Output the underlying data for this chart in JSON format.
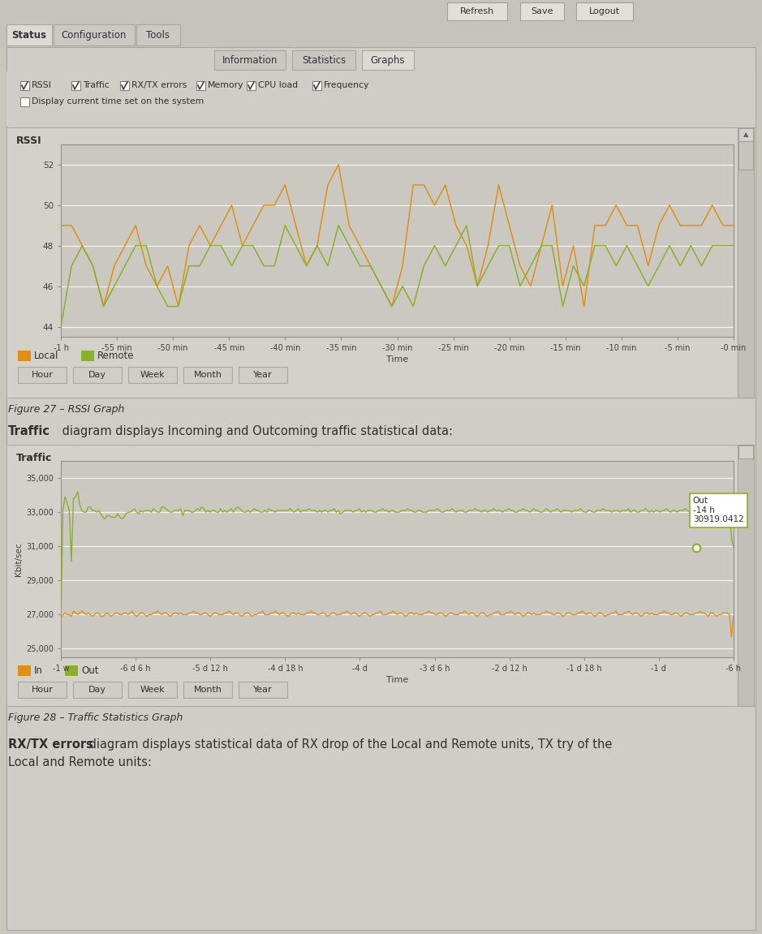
{
  "rssi_title": "RSSI",
  "rssi_xlabel": "Time",
  "rssi_yticks": [
    44,
    46,
    48,
    50,
    52
  ],
  "rssi_xticks": [
    "-1 h",
    "-55 min",
    "-50 min",
    "-45 min",
    "-40 min",
    "-35 min",
    "-30 min",
    "-25 min",
    "-20 min",
    "-15 min",
    "-10 min",
    "-5 min",
    "-0 min"
  ],
  "rssi_ylim": [
    43.5,
    53
  ],
  "rssi_local_color": "#e09018",
  "rssi_remote_color": "#8ab030",
  "rssi_local_data": [
    49,
    49,
    48,
    47,
    45,
    47,
    48,
    49,
    47,
    46,
    47,
    45,
    48,
    49,
    48,
    49,
    50,
    48,
    49,
    50,
    50,
    51,
    49,
    47,
    48,
    51,
    52,
    49,
    48,
    47,
    46,
    45,
    47,
    51,
    51,
    50,
    51,
    49,
    48,
    46,
    48,
    51,
    49,
    47,
    46,
    48,
    50,
    46,
    48,
    45,
    49,
    49,
    50,
    49,
    49,
    47,
    49,
    50,
    49,
    49,
    49,
    50,
    49,
    49
  ],
  "rssi_remote_data": [
    44,
    47,
    48,
    47,
    45,
    46,
    47,
    48,
    48,
    46,
    45,
    45,
    47,
    47,
    48,
    48,
    47,
    48,
    48,
    47,
    47,
    49,
    48,
    47,
    48,
    47,
    49,
    48,
    47,
    47,
    46,
    45,
    46,
    45,
    47,
    48,
    47,
    48,
    49,
    46,
    47,
    48,
    48,
    46,
    47,
    48,
    48,
    45,
    47,
    46,
    48,
    48,
    47,
    48,
    47,
    46,
    47,
    48,
    47,
    48,
    47,
    48,
    48,
    48
  ],
  "rssi_time_buttons": [
    "Hour",
    "Day",
    "Week",
    "Month",
    "Year"
  ],
  "figure27_label": "Figure 27 – RSSI Graph",
  "traffic_title": "Traffic",
  "traffic_ylabel": "Kbit/sec",
  "traffic_xlabel": "Time",
  "traffic_yticks": [
    25000,
    27000,
    29000,
    31000,
    33000,
    35000
  ],
  "traffic_xticks": [
    "-1 w",
    "-6 d 6 h",
    "-5 d 12 h",
    "-4 d 18 h",
    "-4 d",
    "-3 d 6 h",
    "-2 d 12 h",
    "-1 d 18 h",
    "-1 d",
    "-6 h"
  ],
  "traffic_ylim": [
    24500,
    36000
  ],
  "traffic_in_color": "#e09018",
  "traffic_out_color": "#8ab030",
  "traffic_out_data": [
    26500,
    33200,
    33900,
    33500,
    33100,
    30100,
    33800,
    33900,
    34200,
    33400,
    33100,
    33000,
    33000,
    33300,
    33300,
    33100,
    33100,
    33000,
    33100,
    32900,
    32700,
    32600,
    32800,
    32800,
    32700,
    32700,
    32700,
    32900,
    32700,
    32600,
    32700,
    32900,
    33000,
    33000,
    33100,
    33200,
    33000,
    32900,
    33100,
    33000,
    33100,
    33100,
    33100,
    33000,
    33200,
    33100,
    33000,
    33000,
    33300,
    33300,
    33200,
    33100,
    33000,
    33000,
    33100,
    33100,
    33100,
    33200,
    32800,
    33100,
    33100,
    33100,
    33000,
    33000,
    33100,
    33200,
    33100,
    33300,
    33200,
    33000,
    33100,
    33000,
    33100,
    33100,
    33000,
    33000,
    33200,
    33000,
    33100,
    33000,
    33100,
    33200,
    33000,
    33200,
    33300,
    33200,
    33100,
    33000,
    33000,
    33100,
    33000,
    33100,
    33200,
    33100,
    33100,
    33000,
    33000,
    33100,
    33000,
    33200,
    33100,
    33100,
    33000,
    33100,
    33100,
    33100,
    33100,
    33100,
    33100,
    33200,
    33100,
    33000,
    33100,
    33200,
    33000,
    33100,
    33100,
    33100,
    33200,
    33100,
    33100,
    33100,
    33000,
    33100,
    33000,
    33100,
    33100,
    33000,
    33100,
    33100,
    33200,
    33000,
    33100,
    32900,
    33000,
    33100,
    33100,
    33100,
    33100,
    33000,
    33100,
    33100,
    33200,
    33000,
    33100,
    33000,
    33100,
    33100,
    33100,
    33000,
    33000,
    33100,
    33100,
    33200,
    33100,
    33100,
    33000,
    33100,
    33100,
    33000,
    33000,
    33000,
    33100,
    33100,
    33100,
    33200,
    33100,
    33100,
    33000,
    33000,
    33100,
    33100,
    33000,
    33000,
    33000,
    33100,
    33100,
    33100,
    33100,
    33200,
    33100,
    33000,
    33000,
    33100,
    33100,
    33100,
    33200,
    33100,
    33000,
    33100,
    33100,
    33100,
    33000,
    33000,
    33100,
    33100,
    33100,
    33200,
    33100,
    33100,
    33000,
    33100,
    33100,
    33000,
    33100,
    33100,
    33200,
    33100,
    33100,
    33100,
    33000,
    33100,
    33100,
    33200,
    33100,
    33100,
    33000,
    33000,
    33100,
    33100,
    33200,
    33100,
    33100,
    33000,
    33100,
    33200,
    33100,
    33100,
    33000,
    33000,
    33100,
    33200,
    33100,
    33000,
    33100,
    33100,
    33200,
    33100,
    33000,
    33100,
    33100,
    33100,
    33100,
    33000,
    33100,
    33100,
    33100,
    33200,
    33100,
    33000,
    33000,
    33100,
    33100,
    33000,
    33000,
    33100,
    33100,
    33100,
    33200,
    33100,
    33100,
    33100,
    33000,
    33100,
    33100,
    33100,
    33000,
    33100,
    33100,
    33100,
    33200,
    33000,
    33100,
    33100,
    33000,
    33000,
    33100,
    33100,
    33200,
    33100,
    33000,
    33100,
    33000,
    33100,
    33100,
    33000,
    33100,
    33100,
    33200,
    33100,
    33000,
    33100,
    33100,
    33000,
    33100,
    33100,
    33100,
    33200,
    33100,
    33000,
    33100,
    33100,
    33000,
    33000,
    33000,
    33100,
    33100,
    33100,
    33200,
    33100,
    33100,
    33100,
    33000,
    33100,
    33100,
    33000,
    33100,
    33200,
    33100,
    31500,
    30919
  ],
  "traffic_in_data": [
    26800,
    27000,
    27100,
    27000,
    27000,
    26900,
    27200,
    27100,
    27000,
    27100,
    27200,
    27100,
    27000,
    27100,
    27000,
    26900,
    27000,
    27100,
    27100,
    26900,
    26900,
    27000,
    27100,
    27000,
    26900,
    27000,
    27100,
    27100,
    27000,
    27000,
    27100,
    27100,
    27000,
    27100,
    27200,
    27000,
    26900,
    27000,
    27100,
    27100,
    27000,
    26900,
    27000,
    27000,
    27100,
    27100,
    27200,
    27100,
    27000,
    27100,
    27100,
    27000,
    26900,
    27000,
    27100,
    27100,
    27000,
    27100,
    27000,
    27000,
    27000,
    27100,
    27100,
    27200,
    27100,
    27100,
    27000,
    27000,
    27100,
    27100,
    27000,
    26900,
    27000,
    27100,
    27100,
    27000,
    27000,
    27000,
    27100,
    27100,
    27200,
    27100,
    27000,
    27100,
    27100,
    27000,
    26900,
    27000,
    27100,
    27100,
    27000,
    26900,
    27000,
    27000,
    27100,
    27100,
    27200,
    27000,
    27000,
    27000,
    27100,
    27100,
    27200,
    27100,
    27000,
    27100,
    27100,
    27000,
    26900,
    27000,
    27100,
    27100,
    27000,
    27100,
    27000,
    27000,
    27000,
    27100,
    27100,
    27200,
    27100,
    27100,
    27000,
    27000,
    27100,
    27100,
    27000,
    26900,
    27000,
    27100,
    27100,
    27000,
    27000,
    27000,
    27100,
    27100,
    27200,
    27100,
    27000,
    27100,
    27100,
    27000,
    26900,
    27000,
    27100,
    27100,
    27000,
    26900,
    27000,
    27000,
    27100,
    27100,
    27200,
    27000,
    27000,
    27000,
    27100,
    27100,
    27200,
    27100,
    27000,
    27100,
    27100,
    27000,
    26900,
    27000,
    27100,
    27100,
    27000,
    27100,
    27000,
    27000,
    27000,
    27100,
    27100,
    27200,
    27100,
    27100,
    27000,
    27000,
    27100,
    27100,
    27000,
    26900,
    27000,
    27100,
    27100,
    27000,
    27000,
    27000,
    27100,
    27100,
    27200,
    27100,
    27000,
    27100,
    27100,
    27000,
    26900,
    27000,
    27100,
    27100,
    27000,
    26900,
    27000,
    27000,
    27100,
    27100,
    27200,
    27000,
    27000,
    27000,
    27100,
    27100,
    27200,
    27100,
    27000,
    27100,
    27100,
    27000,
    26900,
    27000,
    27100,
    27100,
    27000,
    27100,
    27000,
    27000,
    27000,
    27100,
    27100,
    27200,
    27100,
    27100,
    27000,
    27000,
    27100,
    27100,
    27000,
    26900,
    27000,
    27100,
    27100,
    27000,
    27000,
    27000,
    27100,
    27100,
    27200,
    27100,
    27000,
    27100,
    27100,
    27000,
    26900,
    27000,
    27100,
    27100,
    27000,
    26900,
    27000,
    27000,
    27100,
    27100,
    27200,
    27000,
    27000,
    27000,
    27100,
    27100,
    27200,
    27100,
    27000,
    27100,
    27100,
    27000,
    26900,
    27000,
    27100,
    27100,
    27000,
    27100,
    27000,
    27000,
    27000,
    27100,
    27100,
    27200,
    27100,
    27100,
    27000,
    27000,
    27100,
    27100,
    27000,
    26900,
    27000,
    27100,
    27100,
    27000,
    27000,
    27000,
    27100,
    27100,
    27200,
    27100,
    27100,
    27000,
    26900,
    27100,
    27100,
    27000,
    26900,
    27000,
    27000,
    27100,
    27100,
    27100,
    27000,
    25700,
    26900
  ],
  "traffic_tooltip": {
    "label": "Out",
    "time": "-14 h",
    "value": "30919.0412"
  },
  "traffic_time_buttons": [
    "Hour",
    "Day",
    "Week",
    "Month",
    "Year"
  ],
  "figure28_label": "Figure 28 – Traffic Statistics Graph",
  "footer_text_bold": "RX/TX errors",
  "footer_text": " diagram displays statistical data of RX drop of the Local and Remote units, TX try of the\nLocal and Remote units:"
}
